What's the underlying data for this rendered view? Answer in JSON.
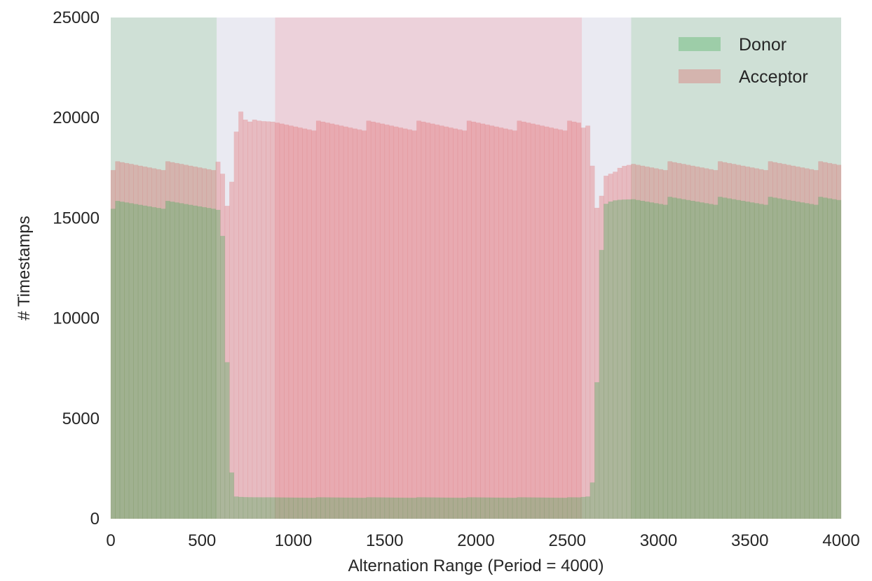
{
  "chart_data": {
    "type": "bar",
    "subtype": "overlaid-histogram",
    "title": "",
    "xlabel": "Alternation Range (Period = 4000)",
    "ylabel": "# Timestamps",
    "xlim": [
      0,
      4000
    ],
    "ylim": [
      0,
      25000
    ],
    "x_ticks": [
      "0",
      "500",
      "1000",
      "1500",
      "2000",
      "2500",
      "3000",
      "3500",
      "4000"
    ],
    "y_ticks": [
      "0",
      "5000",
      "10000",
      "15000",
      "20000",
      "25000"
    ],
    "grid": false,
    "legend_position": "top-right",
    "bin_width": 25,
    "background_color": "#eaeaf2",
    "shaded_ranges": [
      {
        "series": "Donor",
        "ranges": [
          [
            0,
            580
          ],
          [
            2850,
            4000
          ]
        ],
        "color": "#cfe0d6"
      },
      {
        "series": "Acceptor",
        "ranges": [
          [
            900,
            2580
          ]
        ],
        "color": "#ecd1da"
      }
    ],
    "series": [
      {
        "name": "Donor",
        "color": "#4cae5e",
        "x_ranges": [
          [
            0,
            575
          ],
          [
            575,
            875
          ],
          [
            875,
            2575
          ],
          [
            2575,
            2850
          ],
          [
            2850,
            4000
          ]
        ],
        "levels": [
          15650,
          null,
          1050,
          null,
          15850
        ],
        "transition_values": {
          "rising_edge": [
            [
              575,
              15400
            ],
            [
              600,
              14100
            ],
            [
              625,
              7800
            ],
            [
              650,
              2300
            ],
            [
              675,
              1100
            ]
          ],
          "falling_edge": [
            [
              2600,
              1100
            ],
            [
              2625,
              1800
            ],
            [
              2650,
              6800
            ],
            [
              2675,
              13400
            ],
            [
              2700,
              15700
            ]
          ]
        }
      },
      {
        "name": "Acceptor",
        "color": "#e15759",
        "x_ranges": [
          [
            0,
            575
          ],
          [
            575,
            875
          ],
          [
            875,
            2575
          ],
          [
            2575,
            2850
          ],
          [
            2850,
            4000
          ]
        ],
        "levels": [
          17600,
          null,
          19600,
          null,
          17600
        ],
        "transition_values": {
          "left_dip": [
            [
              575,
              17800
            ],
            [
              600,
              17200
            ],
            [
              625,
              15600
            ],
            [
              650,
              16800
            ],
            [
              675,
              19300
            ],
            [
              700,
              20300
            ],
            [
              725,
              19900
            ],
            [
              750,
              19800
            ],
            [
              775,
              19900
            ]
          ],
          "right_dip": [
            [
              2575,
              19500
            ],
            [
              2600,
              19600
            ],
            [
              2625,
              17600
            ],
            [
              2650,
              15500
            ],
            [
              2675,
              16100
            ],
            [
              2700,
              17100
            ],
            [
              2725,
              17200
            ],
            [
              2750,
              17300
            ]
          ]
        }
      }
    ]
  }
}
